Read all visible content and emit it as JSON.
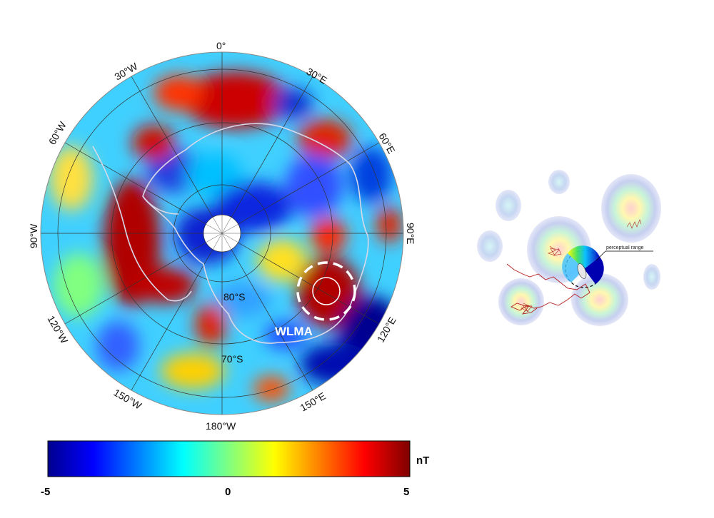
{
  "map": {
    "lon_labels": {
      "top": "0°",
      "e30": "30°E",
      "e60": "60°E",
      "e90": "90°E",
      "e120": "120°E",
      "e150": "150°E",
      "bottom": "180°W",
      "w150": "150°W",
      "w120": "120°W",
      "w90": "90°W",
      "w60": "60°W",
      "w30": "30°W"
    },
    "lat_labels": {
      "inner": "80°S",
      "outer": "70°S"
    },
    "region_label": "WLMA"
  },
  "colorbar": {
    "unit": "nT",
    "min_label": "-5",
    "mid_label": "0",
    "max_label": "5",
    "range": [
      -5,
      5
    ],
    "colormap": [
      "#00008f",
      "#0000ff",
      "#0080ff",
      "#00ffff",
      "#80ff80",
      "#ffff00",
      "#ff8000",
      "#ff0000",
      "#800000"
    ]
  },
  "inset": {
    "annotation": "perceptual range"
  }
}
